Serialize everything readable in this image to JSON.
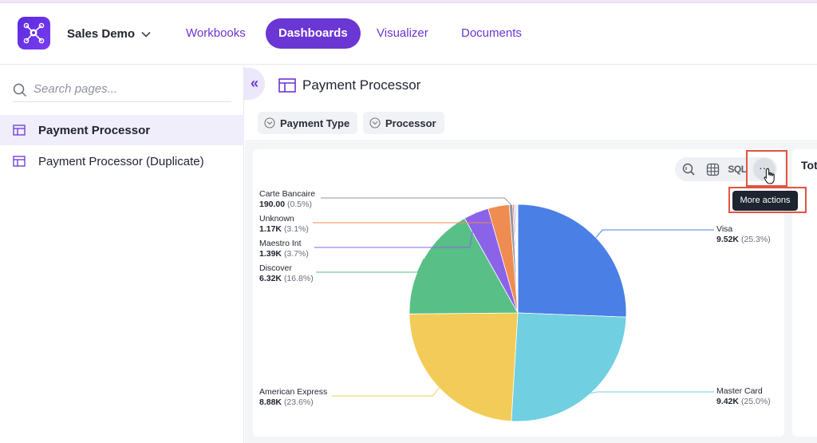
{
  "header": {
    "workspace": "Sales Demo",
    "nav": [
      "Workbooks",
      "Dashboards",
      "Visualizer",
      "Documents"
    ],
    "active_nav": "Dashboards"
  },
  "sidebar": {
    "search_placeholder": "Search pages...",
    "items": [
      {
        "label": "Payment Processor",
        "active": true
      },
      {
        "label": "Payment Processor (Duplicate)",
        "active": false
      }
    ]
  },
  "page": {
    "title": "Payment Processor",
    "filters": [
      "Payment Type",
      "Processor"
    ]
  },
  "toolbar": {
    "sql_label": "SQL",
    "more_label": "···",
    "tooltip": "More actions"
  },
  "right_card_title": "Tot",
  "colors": {
    "accent": "#6a36d4",
    "highlight": "#e0543f"
  },
  "chart_data": {
    "type": "pie",
    "slices": [
      {
        "name": "Visa",
        "display": "9.52K",
        "pct": "(25.3%)",
        "value": 9520,
        "color": "#4a7fe6"
      },
      {
        "name": "Master Card",
        "display": "9.42K",
        "pct": "(25.0%)",
        "value": 9420,
        "color": "#70cfe0"
      },
      {
        "name": "American Express",
        "display": "8.88K",
        "pct": "(23.6%)",
        "value": 8880,
        "color": "#f2cb58"
      },
      {
        "name": "Discover",
        "display": "6.32K",
        "pct": "(16.8%)",
        "value": 6320,
        "color": "#58bf86"
      },
      {
        "name": "Maestro Int",
        "display": "1.39K",
        "pct": "(3.7%)",
        "value": 1390,
        "color": "#8a63e8"
      },
      {
        "name": "Unknown",
        "display": "1.17K",
        "pct": "(3.1%)",
        "value": 1170,
        "color": "#ef8c52"
      },
      {
        "name": "Carte Bancaire",
        "display": "190.00",
        "pct": "(0.5%)",
        "value": 190,
        "color": "#8f96a3"
      },
      {
        "name": "",
        "display": "",
        "pct": "",
        "value": 70,
        "color": "#e85a5a"
      },
      {
        "name": "",
        "display": "",
        "pct": "",
        "value": 60,
        "color": "#b47ae0"
      },
      {
        "name": "",
        "display": "",
        "pct": "",
        "value": 60,
        "color": "#9ad3a8"
      },
      {
        "name": "",
        "display": "",
        "pct": "",
        "value": 50,
        "color": "#c9ccd3"
      },
      {
        "name": "",
        "display": "",
        "pct": "",
        "value": 40,
        "color": "#f4a9a9"
      }
    ]
  }
}
